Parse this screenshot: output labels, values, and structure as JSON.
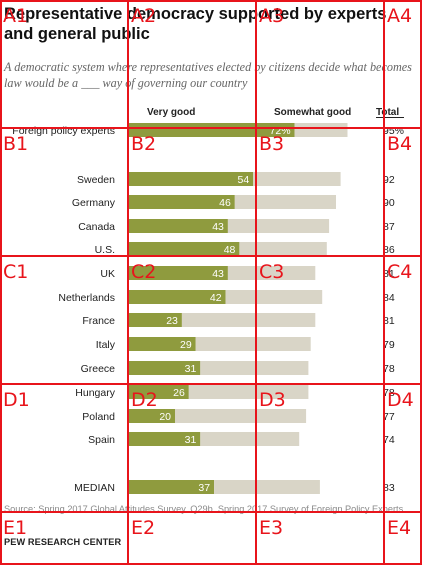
{
  "chart_data": {
    "type": "bar",
    "stacked": true,
    "orientation": "horizontal",
    "title": "Representative democracy supported by experts and general public",
    "subtitle": "A democratic system where representatives elected by citizens decide what becomes law would be a ___ way of governing our country",
    "legend": [
      "Very good",
      "Somewhat good",
      "Total"
    ],
    "categories": [
      "Foreign policy experts",
      "Sweden",
      "Germany",
      "Canada",
      "U.S.",
      "UK",
      "Netherlands",
      "France",
      "Italy",
      "Greece",
      "Hungary",
      "Poland",
      "Spain",
      "MEDIAN"
    ],
    "series": [
      {
        "name": "Very good",
        "values": [
          72,
          54,
          46,
          43,
          48,
          43,
          42,
          23,
          29,
          31,
          26,
          20,
          31,
          37
        ],
        "color": "#8f9b3e"
      },
      {
        "name": "Somewhat good",
        "values": [
          23,
          38,
          44,
          44,
          38,
          38,
          42,
          58,
          50,
          47,
          52,
          57,
          43,
          46
        ],
        "color": "#d9d5c7"
      }
    ],
    "totals": [
      "95%",
      "92",
      "90",
      "87",
      "86",
      "81",
      "84",
      "81",
      "79",
      "78",
      "78",
      "77",
      "74",
      "83"
    ],
    "value_labels": [
      "72%",
      "54",
      "46",
      "43",
      "48",
      "43",
      "42",
      "23",
      "29",
      "31",
      "26",
      "20",
      "31",
      "37"
    ]
  },
  "source": "Source: Spring 2017 Global Attitudes Survey. Q29b. Spring 2017 Survey of Foreign Policy Experts.",
  "credit": "PEW RESEARCH CENTER",
  "grid": {
    "rows": [
      "A",
      "B",
      "C",
      "D",
      "E"
    ],
    "cols": [
      "1",
      "2",
      "3",
      "4"
    ],
    "color": "#e8141b"
  }
}
